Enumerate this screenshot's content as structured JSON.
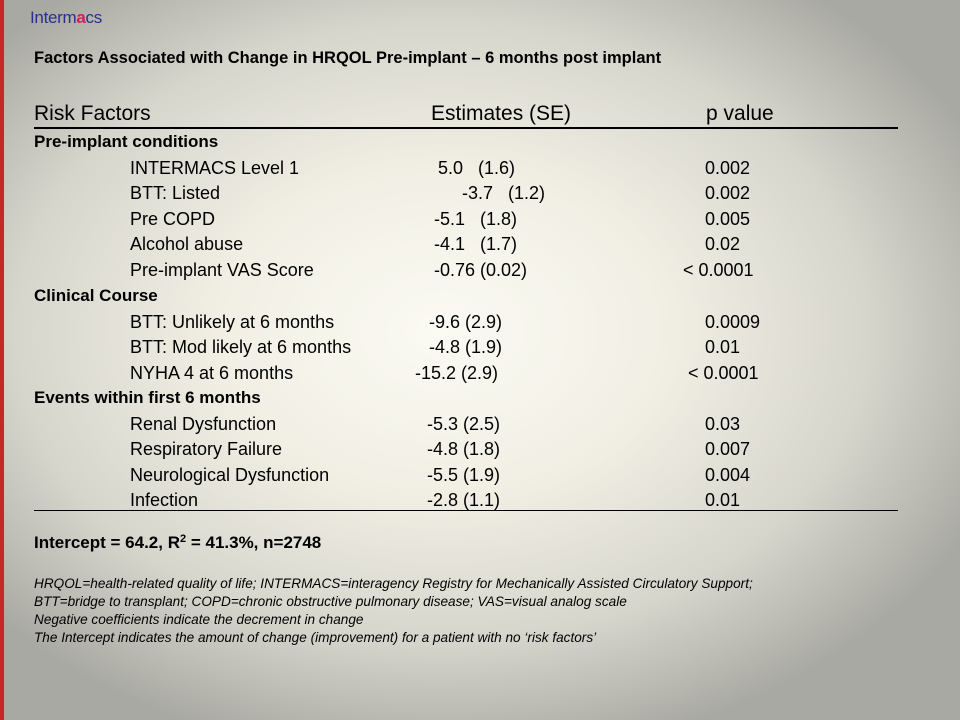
{
  "logo": {
    "lead": "Interm",
    "accent": "a",
    "tail": "cs"
  },
  "title": "Factors Associated with Change in HRQOL Pre-implant – 6 months post implant",
  "headers": {
    "factor": "Risk Factors",
    "estimate": "Estimates (SE)",
    "pvalue": "p value"
  },
  "sections": [
    {
      "label": "Pre-implant conditions",
      "rows": [
        {
          "factor": "INTERMACS Level 1",
          "estimate": "5.0   (1.6)",
          "pvalue": "0.002"
        },
        {
          "factor": "BTT: Listed",
          "estimate": "-3.7   (1.2)",
          "pvalue": "0.002"
        },
        {
          "factor": "Pre COPD",
          "estimate": "-5.1   (1.8)",
          "pvalue": "0.005"
        },
        {
          "factor": "Alcohol abuse",
          "estimate": "-4.1   (1.7)",
          "pvalue": "0.02"
        },
        {
          "factor": "Pre-implant VAS Score",
          "estimate": "-0.76 (0.02)",
          "pvalue": "< 0.0001"
        }
      ]
    },
    {
      "label": "Clinical Course",
      "rows": [
        {
          "factor": "BTT: Unlikely at 6 months",
          "estimate": "-9.6 (2.9)",
          "pvalue": "0.0009"
        },
        {
          "factor": "BTT: Mod likely at 6 months",
          "estimate": "-4.8 (1.9)",
          "pvalue": "0.01"
        },
        {
          "factor": "NYHA 4 at 6 months",
          "estimate": "-15.2 (2.9)",
          "pvalue": "< 0.0001"
        }
      ]
    },
    {
      "label": "Events within first 6 months",
      "rows": [
        {
          "factor": "Renal Dysfunction",
          "estimate": "-5.3 (2.5)",
          "pvalue": "0.03"
        },
        {
          "factor": "Respiratory Failure",
          "estimate": "-4.8 (1.8)",
          "pvalue": "0.007"
        },
        {
          "factor": "Neurological Dysfunction",
          "estimate": "-5.5 (1.9)",
          "pvalue": "0.004"
        },
        {
          "factor": "Infection",
          "estimate": "-2.8 (1.1)",
          "pvalue": "0.01"
        }
      ]
    }
  ],
  "intercept": {
    "pre": "Intercept = 64.2, R",
    "sup": "2",
    "post": " = 41.3%, n=2748"
  },
  "notes": [
    "HRQOL=health-related quality of life; INTERMACS=interagency Registry for Mechanically Assisted Circulatory Support;",
    "BTT=bridge to transplant; COPD=chronic obstructive pulmonary disease; VAS=visual analog scale",
    "Negative coefficients indicate the decrement in change",
    "The Intercept indicates the amount of change (improvement) for a patient with no ‘risk factors’"
  ]
}
